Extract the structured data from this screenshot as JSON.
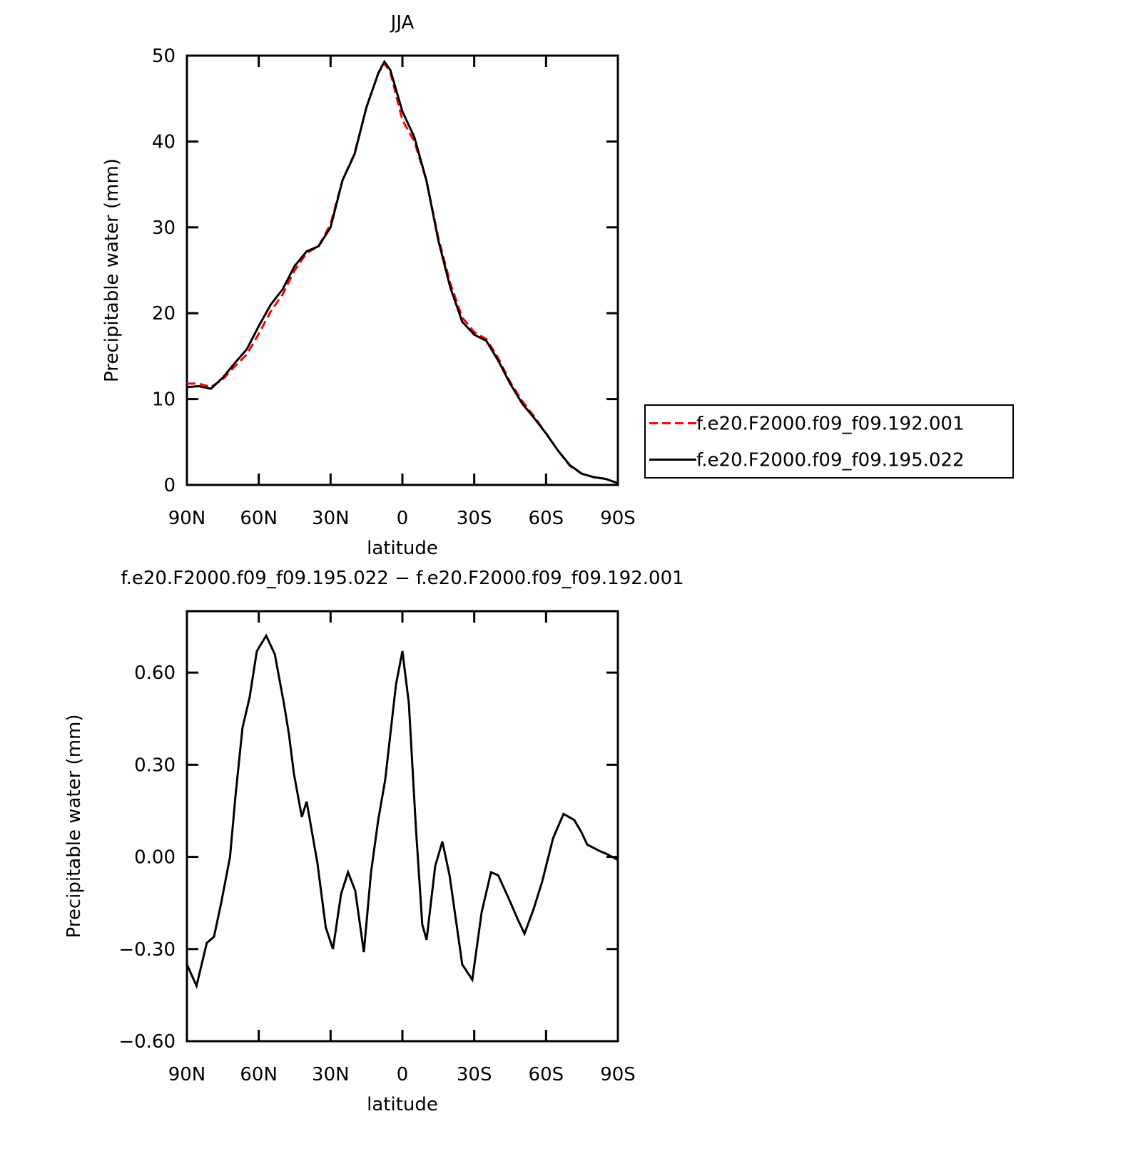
{
  "chart_data": [
    {
      "type": "line",
      "title": "JJA",
      "xlabel": "latitude",
      "ylabel": "Precipitable water (mm)",
      "x": [
        90,
        85,
        80,
        75,
        70,
        65,
        60,
        55,
        50,
        45,
        40,
        35,
        30,
        25,
        20,
        15,
        10,
        7.5,
        5,
        0,
        -5,
        -10,
        -15,
        -20,
        -25,
        -30,
        -35,
        -40,
        -45,
        -50,
        -55,
        -60,
        -65,
        -70,
        -75,
        -80,
        -85,
        -90
      ],
      "xlim": [
        90,
        -90
      ],
      "xticks": [
        {
          "value": 90,
          "label": "90N"
        },
        {
          "value": 60,
          "label": "60N"
        },
        {
          "value": 30,
          "label": "30N"
        },
        0,
        {
          "value": -30,
          "label": "30S"
        },
        {
          "value": -60,
          "label": "60S"
        },
        {
          "value": -90,
          "label": "90S"
        }
      ],
      "ylim": [
        0,
        50
      ],
      "yticks": [
        0,
        10,
        20,
        30,
        40,
        50
      ],
      "legend": "right",
      "series": [
        {
          "name": "f.e20.F2000.f09_f09.192.001",
          "color": "#ff0000",
          "linestyle": "dashed",
          "values": [
            11.8,
            11.8,
            11.4,
            12.3,
            13.8,
            15.2,
            17.6,
            20.2,
            22.2,
            25.0,
            27.0,
            27.8,
            30.4,
            35.5,
            38.6,
            44.0,
            48.0,
            49.1,
            48.0,
            42.5,
            40.0,
            35.5,
            28.8,
            23.5,
            19.5,
            17.8,
            17.0,
            14.8,
            12.0,
            9.8,
            8.0,
            6.0,
            4.0,
            2.2,
            1.3,
            0.9,
            0.7,
            0.2
          ]
        },
        {
          "name": "f.e20.F2000.f09_f09.195.022",
          "color": "#000000",
          "linestyle": "solid",
          "values": [
            11.4,
            11.5,
            11.2,
            12.5,
            14.2,
            15.8,
            18.5,
            21.0,
            22.8,
            25.5,
            27.2,
            27.8,
            30.0,
            35.5,
            38.5,
            44.0,
            48.0,
            49.3,
            48.3,
            43.5,
            40.5,
            35.5,
            28.5,
            23.0,
            19.0,
            17.5,
            16.8,
            14.5,
            11.8,
            9.5,
            7.8,
            6.0,
            4.0,
            2.3,
            1.3,
            0.9,
            0.7,
            0.2
          ]
        }
      ]
    },
    {
      "type": "line",
      "title": "f.e20.F2000.f09_f09.195.022 − f.e20.F2000.f09_f09.192.001",
      "xlabel": "latitude",
      "ylabel": "Precipitable water (mm)",
      "x": [
        90,
        86,
        81.7,
        78.7,
        75.7,
        72,
        69.7,
        66.8,
        63.8,
        60.8,
        56.9,
        53.3,
        49.5,
        47.4,
        45.3,
        42,
        40,
        35.5,
        32,
        29,
        25.6,
        22.7,
        19.7,
        16.1,
        13.1,
        10.1,
        7.2,
        2.7,
        0,
        -2.7,
        -5.6,
        -8.3,
        -10.1,
        -13.7,
        -16.7,
        -19.7,
        -25,
        -29.2,
        -33.1,
        -37,
        -40,
        -44.1,
        -48,
        -51,
        -54.8,
        -58.4,
        -62.9,
        -67.3,
        -71.8,
        -74.8,
        -77.2,
        -82.2,
        -85.2,
        -87.6,
        -90
      ],
      "values": [
        -0.35,
        -0.42,
        -0.28,
        -0.26,
        -0.15,
        0.0,
        0.2,
        0.42,
        0.52,
        0.67,
        0.72,
        0.66,
        0.5,
        0.4,
        0.27,
        0.13,
        0.18,
        -0.02,
        -0.23,
        -0.3,
        -0.12,
        -0.05,
        -0.11,
        -0.31,
        -0.05,
        0.12,
        0.25,
        0.56,
        0.67,
        0.5,
        0.1,
        -0.22,
        -0.27,
        -0.03,
        0.05,
        -0.06,
        -0.35,
        -0.4,
        -0.18,
        -0.05,
        -0.06,
        -0.13,
        -0.2,
        -0.25,
        -0.17,
        -0.08,
        0.06,
        0.14,
        0.12,
        0.08,
        0.04,
        0.02,
        0.01,
        0.0,
        -0.01
      ],
      "color": "#000000",
      "xlim": [
        90,
        -90
      ],
      "xticks": [
        {
          "value": 90,
          "label": "90N"
        },
        {
          "value": 60,
          "label": "60N"
        },
        {
          "value": 30,
          "label": "30N"
        },
        0,
        {
          "value": -30,
          "label": "30S"
        },
        {
          "value": -60,
          "label": "60S"
        },
        {
          "value": -90,
          "label": "90S"
        }
      ],
      "ylim": [
        -0.6,
        0.8
      ],
      "yticks": [
        {
          "value": -0.6,
          "label": "−0.60"
        },
        {
          "value": -0.3,
          "label": "−0.30"
        },
        {
          "value": 0,
          "label": "0.00"
        },
        {
          "value": 0.3,
          "label": "0.30"
        },
        {
          "value": 0.6,
          "label": "0.60"
        }
      ]
    }
  ]
}
